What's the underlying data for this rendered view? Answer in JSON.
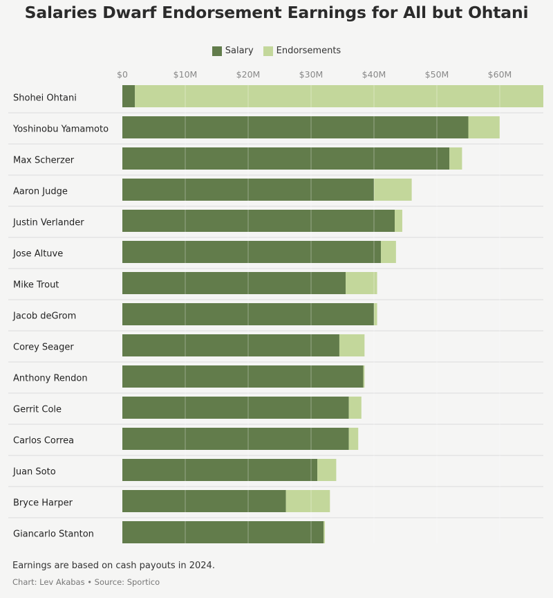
{
  "title": "Salaries Dwarf Endorsement Earnings for All but Ohtani",
  "legend": {
    "salary_label": "Salary",
    "endorsements_label": "Endorsements"
  },
  "colors": {
    "salary": "#627c4b",
    "endorsements": "#c3d79b"
  },
  "footnote": "Earnings are based on cash payouts in 2024.",
  "credits": "Chart: Lev Akabas • Source: Sportico",
  "chart_data": {
    "type": "bar",
    "orientation": "horizontal",
    "stacked": true,
    "title": "Salaries Dwarf Endorsement Earnings for All but Ohtani",
    "xlim": [
      0,
      67
    ],
    "x_ticks": [
      {
        "value": 0,
        "label": "$0"
      },
      {
        "value": 10,
        "label": "$10M"
      },
      {
        "value": 20,
        "label": "$20M"
      },
      {
        "value": 30,
        "label": "$30M"
      },
      {
        "value": 40,
        "label": "$40M"
      },
      {
        "value": 50,
        "label": "$50M"
      },
      {
        "value": 60,
        "label": "$60M"
      }
    ],
    "x_unit": "$M",
    "legend_position": "top-center",
    "grid": true,
    "categories": [
      "Shohei Ohtani",
      "Yoshinobu Yamamoto",
      "Max Scherzer",
      "Aaron Judge",
      "Justin Verlander",
      "Jose Altuve",
      "Mike Trout",
      "Jacob deGrom",
      "Corey Seager",
      "Anthony Rendon",
      "Gerrit Cole",
      "Carlos Correa",
      "Juan Soto",
      "Bryce Harper",
      "Giancarlo Stanton"
    ],
    "series": [
      {
        "name": "Salary",
        "values": [
          2.0,
          55.0,
          52.0,
          40.0,
          43.3,
          41.1,
          35.5,
          40.0,
          34.5,
          38.3,
          36.0,
          36.0,
          31.0,
          26.0,
          32.0
        ]
      },
      {
        "name": "Endorsements",
        "values": [
          65.0,
          5.0,
          2.0,
          6.0,
          1.2,
          2.4,
          5.0,
          0.5,
          4.0,
          0.2,
          2.0,
          1.5,
          3.0,
          7.0,
          0.2
        ]
      }
    ]
  }
}
